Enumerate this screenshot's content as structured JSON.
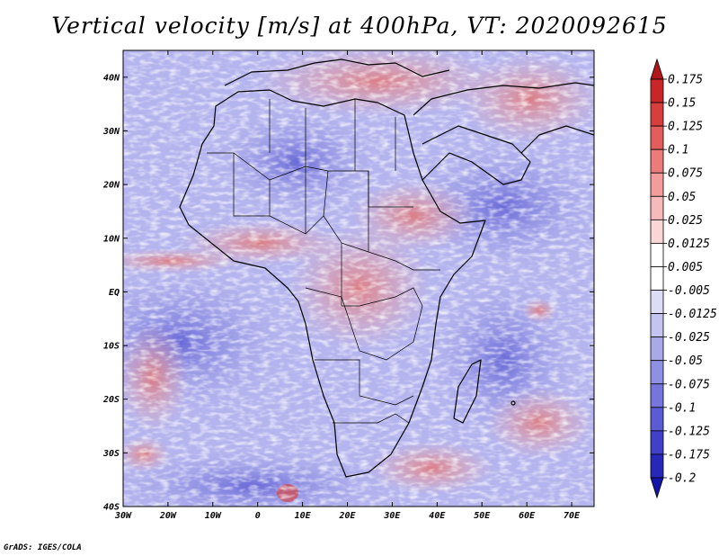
{
  "title": "Vertical velocity [m/s] at 400hPa, VT: 2020092615",
  "credit": "GrADS: IGES/COLA",
  "map": {
    "lon_range": [
      -30,
      75
    ],
    "lat_range": [
      -40,
      45
    ],
    "lat_ticks": [
      {
        "value": 40,
        "label": "40N"
      },
      {
        "value": 30,
        "label": "30N"
      },
      {
        "value": 20,
        "label": "20N"
      },
      {
        "value": 10,
        "label": "10N"
      },
      {
        "value": 0,
        "label": "EQ"
      },
      {
        "value": -10,
        "label": "10S"
      },
      {
        "value": -20,
        "label": "20S"
      },
      {
        "value": -30,
        "label": "30S"
      },
      {
        "value": -40,
        "label": "40S"
      }
    ],
    "lon_ticks": [
      {
        "value": -30,
        "label": "30W"
      },
      {
        "value": -20,
        "label": "20W"
      },
      {
        "value": -10,
        "label": "10W"
      },
      {
        "value": 0,
        "label": "0"
      },
      {
        "value": 10,
        "label": "10E"
      },
      {
        "value": 20,
        "label": "20E"
      },
      {
        "value": 30,
        "label": "30E"
      },
      {
        "value": 40,
        "label": "40E"
      },
      {
        "value": 50,
        "label": "50E"
      },
      {
        "value": 60,
        "label": "60E"
      },
      {
        "value": 70,
        "label": "70E"
      }
    ]
  },
  "colorbar": {
    "levels": [
      "0.175",
      "0.15",
      "0.125",
      "0.1",
      "0.075",
      "0.05",
      "0.025",
      "0.0125",
      "0.005",
      "-0.005",
      "-0.0125",
      "-0.025",
      "-0.05",
      "-0.075",
      "-0.1",
      "-0.125",
      "-0.175",
      "-0.2"
    ],
    "colors": [
      "#b2181b",
      "#c9262a",
      "#d73e3e",
      "#e35d5d",
      "#ec7c7c",
      "#f29c9c",
      "#f7baba",
      "#fbd6d6",
      "#ffffff",
      "#ffffff",
      "#dcdcf6",
      "#c4c4f0",
      "#a9a9ea",
      "#8f8fe3",
      "#7575dc",
      "#5b5bd3",
      "#4040c8",
      "#2828b8",
      "#1414a8"
    ]
  }
}
